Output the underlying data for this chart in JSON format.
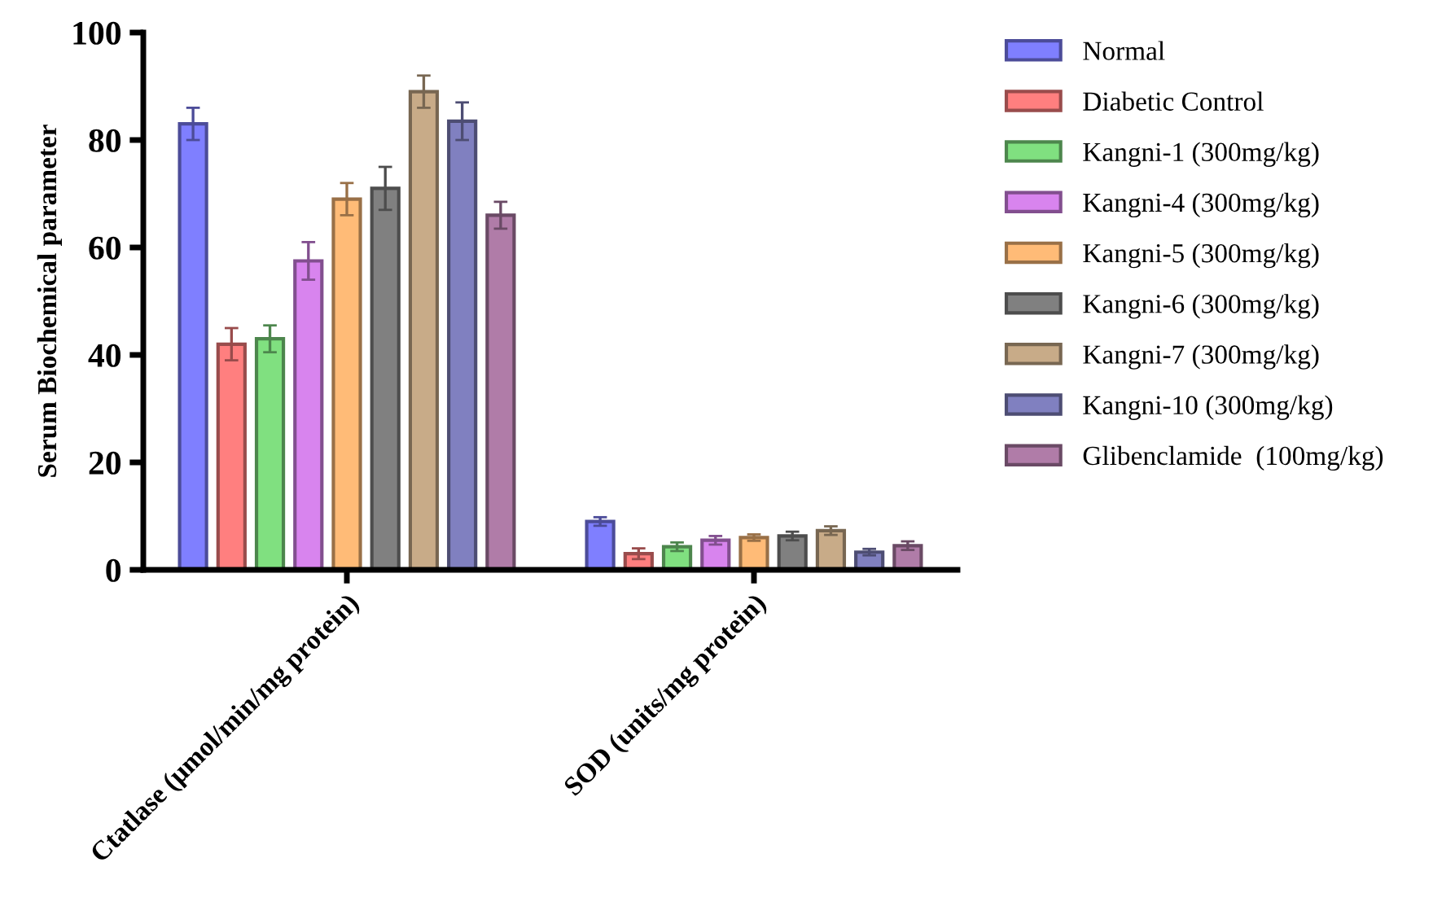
{
  "chart_data": {
    "type": "bar",
    "ylabel": "Serum Biochemical parameter",
    "categories": [
      "Ctatlase (µmol/min/mg protein)",
      "SOD (units/mg protein)"
    ],
    "ylim": [
      0,
      100
    ],
    "yticks": [
      0,
      20,
      40,
      60,
      80,
      100
    ],
    "grid": false,
    "legend": "right",
    "series": [
      {
        "name": "Normal",
        "color": "#7f7fff",
        "values": [
          83,
          9
        ],
        "errors": [
          3,
          0.8
        ]
      },
      {
        "name": "Diabetic Control",
        "color": "#ff7f7f",
        "values": [
          42,
          3
        ],
        "errors": [
          3,
          1
        ]
      },
      {
        "name": "Kangni-1 (300mg/kg)",
        "color": "#80e080",
        "values": [
          43,
          4.3
        ],
        "errors": [
          2.5,
          0.8
        ]
      },
      {
        "name": "Kangni-4 (300mg/kg)",
        "color": "#d884ee",
        "values": [
          57.5,
          5.5
        ],
        "errors": [
          3.5,
          0.8
        ]
      },
      {
        "name": "Kangni-5 (300mg/kg)",
        "color": "#ffbb77",
        "values": [
          69,
          6
        ],
        "errors": [
          3,
          0.6
        ]
      },
      {
        "name": "Kangni-6 (300mg/kg)",
        "color": "#808080",
        "values": [
          71,
          6.3
        ],
        "errors": [
          4,
          0.8
        ]
      },
      {
        "name": "Kangni-7 (300mg/kg)",
        "color": "#c8ab88",
        "values": [
          89,
          7.3
        ],
        "errors": [
          3,
          0.8
        ]
      },
      {
        "name": "Kangni-10 (300mg/kg)",
        "color": "#8080c0",
        "values": [
          83.5,
          3.3
        ],
        "errors": [
          3.5,
          0.6
        ]
      },
      {
        "name": "Glibenclamide  (100mg/kg)",
        "color": "#b07ca8",
        "values": [
          66,
          4.5
        ],
        "errors": [
          2.5,
          0.8
        ]
      }
    ]
  }
}
